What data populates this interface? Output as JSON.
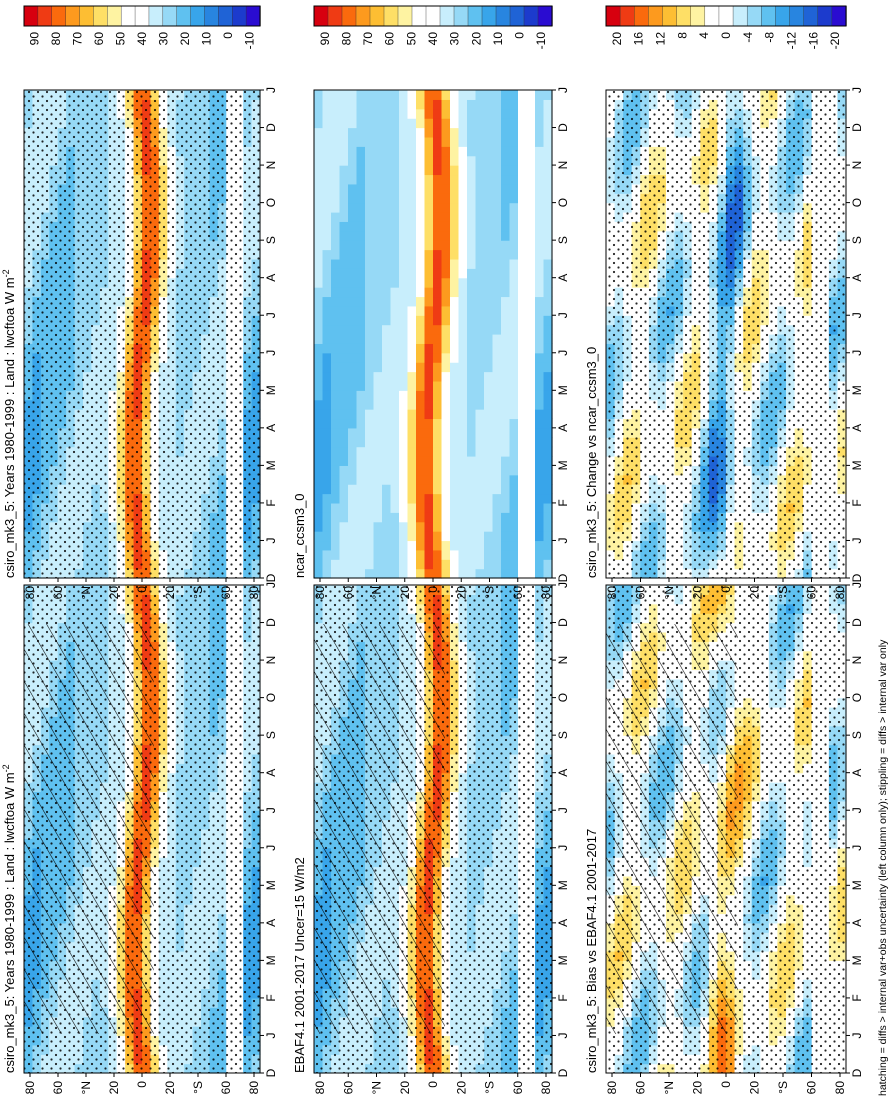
{
  "figure": {
    "footnote": "hatching = diffs > internal var+obs uncertainty (left column only); stippling = diffs > internal var only"
  },
  "chart_data": [
    {
      "type": "heatmap",
      "id": "p1",
      "title": "csiro_mk3_5: Years 1980-1999 : Land : lwcftoa W m",
      "title_sup": "-2",
      "xlabel": "Month",
      "ylabel": "Latitude",
      "x_ticks": [
        "D",
        "J",
        "F",
        "M",
        "A",
        "M",
        "J",
        "J",
        "A",
        "S",
        "O",
        "N",
        "D",
        "J"
      ],
      "y_ticks": [
        "80",
        "60",
        "°N",
        "20",
        "0",
        "20",
        "°S",
        "60",
        "80"
      ],
      "colorbar_labels": [
        "90",
        "80",
        "70",
        "60",
        "50",
        "40",
        "30",
        "20",
        "10",
        "0",
        "-10"
      ],
      "colorbar_colors": [
        "#d7000f",
        "#ef3b14",
        "#fa6a0d",
        "#fd9a1e",
        "#fdbe33",
        "#fedf66",
        "#fef3a2",
        "#ffffff",
        "#ffffff",
        "#c8eefc",
        "#96d9f6",
        "#5fc1f0",
        "#38a5ea",
        "#2885e0",
        "#1f63d6",
        "#1c3bcd",
        "#2a0cd1"
      ],
      "hatching": true,
      "stippling": true
    },
    {
      "type": "heatmap",
      "id": "p2",
      "title": "csiro_mk3_5: Years 1980-1999 : Land : lwcftoa W m",
      "title_sup": "-2",
      "xlabel": "Month",
      "ylabel": "Latitude",
      "x_ticks": [
        "D",
        "J",
        "F",
        "M",
        "A",
        "M",
        "J",
        "J",
        "A",
        "S",
        "O",
        "N",
        "D",
        "J"
      ],
      "y_ticks": [
        "80",
        "60",
        "°N",
        "20",
        "0",
        "20",
        "°S",
        "60",
        "80"
      ],
      "colorbar_labels": [
        "90",
        "80",
        "70",
        "60",
        "50",
        "40",
        "30",
        "20",
        "10",
        "0",
        "-10"
      ],
      "colorbar_colors": [
        "#d7000f",
        "#ef3b14",
        "#fa6a0d",
        "#fd9a1e",
        "#fdbe33",
        "#fedf66",
        "#fef3a2",
        "#ffffff",
        "#ffffff",
        "#c8eefc",
        "#96d9f6",
        "#5fc1f0",
        "#38a5ea",
        "#2885e0",
        "#1f63d6",
        "#1c3bcd",
        "#2a0cd1"
      ],
      "hatching": false,
      "stippling": true
    },
    {
      "type": "heatmap",
      "id": "p3",
      "title": "EBAF4.1 2001-2017 Uncer=15 W/m2",
      "title_sup": "",
      "xlabel": "Month",
      "ylabel": "Latitude",
      "x_ticks": [
        "D",
        "J",
        "F",
        "M",
        "A",
        "M",
        "J",
        "J",
        "A",
        "S",
        "O",
        "N",
        "D",
        "J"
      ],
      "y_ticks": [
        "80",
        "60",
        "°N",
        "20",
        "0",
        "20",
        "°S",
        "60",
        "80"
      ],
      "colorbar_labels": [
        "90",
        "80",
        "70",
        "60",
        "50",
        "40",
        "30",
        "20",
        "10",
        "0",
        "-10"
      ],
      "colorbar_colors": [
        "#d7000f",
        "#ef3b14",
        "#fa6a0d",
        "#fd9a1e",
        "#fdbe33",
        "#fedf66",
        "#fef3a2",
        "#ffffff",
        "#ffffff",
        "#c8eefc",
        "#96d9f6",
        "#5fc1f0",
        "#38a5ea",
        "#2885e0",
        "#1f63d6",
        "#1c3bcd",
        "#2a0cd1"
      ],
      "hatching": true,
      "stippling": true
    },
    {
      "type": "heatmap",
      "id": "p4",
      "title": "ncar_ccsm3_0",
      "title_sup": "",
      "xlabel": "Month",
      "ylabel": "Latitude",
      "x_ticks": [
        "D",
        "J",
        "F",
        "M",
        "A",
        "M",
        "J",
        "J",
        "A",
        "S",
        "O",
        "N",
        "D",
        "J"
      ],
      "y_ticks": [
        "80",
        "60",
        "°N",
        "20",
        "0",
        "20",
        "°S",
        "60",
        "80"
      ],
      "colorbar_labels": [
        "90",
        "80",
        "70",
        "60",
        "50",
        "40",
        "30",
        "20",
        "10",
        "0",
        "-10"
      ],
      "colorbar_colors": [
        "#d7000f",
        "#ef3b14",
        "#fa6a0d",
        "#fd9a1e",
        "#fdbe33",
        "#fedf66",
        "#fef3a2",
        "#ffffff",
        "#ffffff",
        "#c8eefc",
        "#96d9f6",
        "#5fc1f0",
        "#38a5ea",
        "#2885e0",
        "#1f63d6",
        "#1c3bcd",
        "#2a0cd1"
      ],
      "hatching": false,
      "stippling": false
    },
    {
      "type": "heatmap",
      "id": "p5",
      "title": "csiro_mk3_5: Bias vs EBAF4.1 2001-2017",
      "title_sup": "",
      "xlabel": "Month",
      "ylabel": "Latitude",
      "x_ticks": [
        "D",
        "J",
        "F",
        "M",
        "A",
        "M",
        "J",
        "J",
        "A",
        "S",
        "O",
        "N",
        "D",
        "J"
      ],
      "y_ticks": [
        "80",
        "60",
        "°N",
        "20",
        "0",
        "20",
        "°S",
        "60",
        "80"
      ],
      "colorbar_labels": [
        "20",
        "16",
        "12",
        "8",
        "4",
        "0",
        "-4",
        "-8",
        "-12",
        "-16",
        "-20"
      ],
      "colorbar_colors": [
        "#d7000f",
        "#ef3b14",
        "#fa6a0d",
        "#fd9a1e",
        "#fdbe33",
        "#fedf66",
        "#fef3a2",
        "#ffffff",
        "#ffffff",
        "#c8eefc",
        "#96d9f6",
        "#5fc1f0",
        "#38a5ea",
        "#2885e0",
        "#1f63d6",
        "#1c3bcd",
        "#2a0cd1"
      ],
      "hatching": true,
      "stippling": true
    },
    {
      "type": "heatmap",
      "id": "p6",
      "title": "csiro_mk3_5: Change vs ncar_ccsm3_0",
      "title_sup": "",
      "xlabel": "Month",
      "ylabel": "Latitude",
      "x_ticks": [
        "D",
        "J",
        "F",
        "M",
        "A",
        "M",
        "J",
        "J",
        "A",
        "S",
        "O",
        "N",
        "D",
        "J"
      ],
      "y_ticks": [
        "80",
        "60",
        "°N",
        "20",
        "0",
        "20",
        "°S",
        "60",
        "80"
      ],
      "colorbar_labels": [
        "20",
        "16",
        "12",
        "8",
        "4",
        "0",
        "-4",
        "-8",
        "-12",
        "-16",
        "-20"
      ],
      "colorbar_colors": [
        "#d7000f",
        "#ef3b14",
        "#fa6a0d",
        "#fd9a1e",
        "#fdbe33",
        "#fedf66",
        "#fef3a2",
        "#ffffff",
        "#ffffff",
        "#c8eefc",
        "#96d9f6",
        "#5fc1f0",
        "#38a5ea",
        "#2885e0",
        "#1f63d6",
        "#1c3bcd",
        "#2a0cd1"
      ],
      "hatching": false,
      "stippling": true
    }
  ]
}
